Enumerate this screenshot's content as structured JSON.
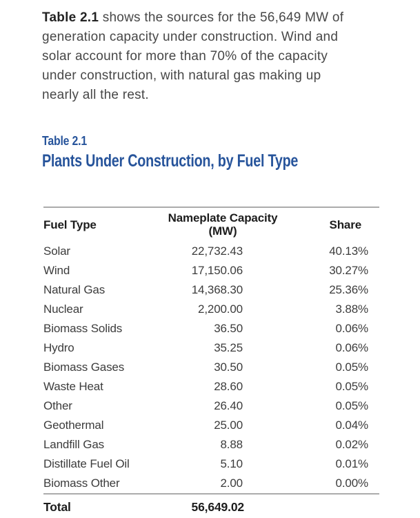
{
  "intro": {
    "lead_bold": "Table 2.1",
    "lines": [
      "shows the sources for the 56,649 MW of",
      "generation capacity under construction. Wind and",
      "solar account for more than 70% of the capacity",
      "under construction, with natural gas making up",
      "nearly all the rest."
    ]
  },
  "table": {
    "label": "Table 2.1",
    "title": "Plants Under Construction, by Fuel Type",
    "columns": [
      "Fuel Type",
      "Nameplate Capacity (MW)",
      "Share"
    ],
    "rows": [
      {
        "fuel": "Solar",
        "capacity": "22,732.43",
        "share": "40.13%"
      },
      {
        "fuel": "Wind",
        "capacity": "17,150.06",
        "share": "30.27%"
      },
      {
        "fuel": "Natural Gas",
        "capacity": "14,368.30",
        "share": "25.36%"
      },
      {
        "fuel": "Nuclear",
        "capacity": "2,200.00",
        "share": "3.88%"
      },
      {
        "fuel": "Biomass Solids",
        "capacity": "36.50",
        "share": "0.06%"
      },
      {
        "fuel": "Hydro",
        "capacity": "35.25",
        "share": "0.06%"
      },
      {
        "fuel": "Biomass Gases",
        "capacity": "30.50",
        "share": "0.05%"
      },
      {
        "fuel": "Waste Heat",
        "capacity": "28.60",
        "share": "0.05%"
      },
      {
        "fuel": "Other",
        "capacity": "26.40",
        "share": "0.05%"
      },
      {
        "fuel": "Geothermal",
        "capacity": "25.00",
        "share": "0.04%"
      },
      {
        "fuel": "Landfill Gas",
        "capacity": "8.88",
        "share": "0.02%"
      },
      {
        "fuel": "Distillate Fuel Oil",
        "capacity": "5.10",
        "share": "0.01%"
      },
      {
        "fuel": "Biomass Other",
        "capacity": "2.00",
        "share": "0.00%"
      }
    ],
    "total": {
      "label": "Total",
      "capacity": "56,649.02",
      "share": ""
    }
  },
  "colors": {
    "accent_blue": "#27549B",
    "body_text": "#474747",
    "table_text": "#3C3C3C",
    "rule_gray": "#ABABAB"
  },
  "chart_data": {
    "type": "table",
    "title": "Plants Under Construction, by Fuel Type",
    "columns": [
      "Fuel Type",
      "Nameplate Capacity (MW)",
      "Share"
    ],
    "categories": [
      "Solar",
      "Wind",
      "Natural Gas",
      "Nuclear",
      "Biomass Solids",
      "Hydro",
      "Biomass Gases",
      "Waste Heat",
      "Other",
      "Geothermal",
      "Landfill Gas",
      "Distillate Fuel Oil",
      "Biomass Other"
    ],
    "series": [
      {
        "name": "Nameplate Capacity (MW)",
        "values": [
          22732.43,
          17150.06,
          14368.3,
          2200.0,
          36.5,
          35.25,
          30.5,
          28.6,
          26.4,
          25.0,
          8.88,
          5.1,
          2.0
        ]
      },
      {
        "name": "Share",
        "values": [
          40.13,
          30.27,
          25.36,
          3.88,
          0.06,
          0.06,
          0.05,
          0.05,
          0.05,
          0.04,
          0.02,
          0.01,
          0.0
        ]
      }
    ],
    "total": 56649.02
  }
}
